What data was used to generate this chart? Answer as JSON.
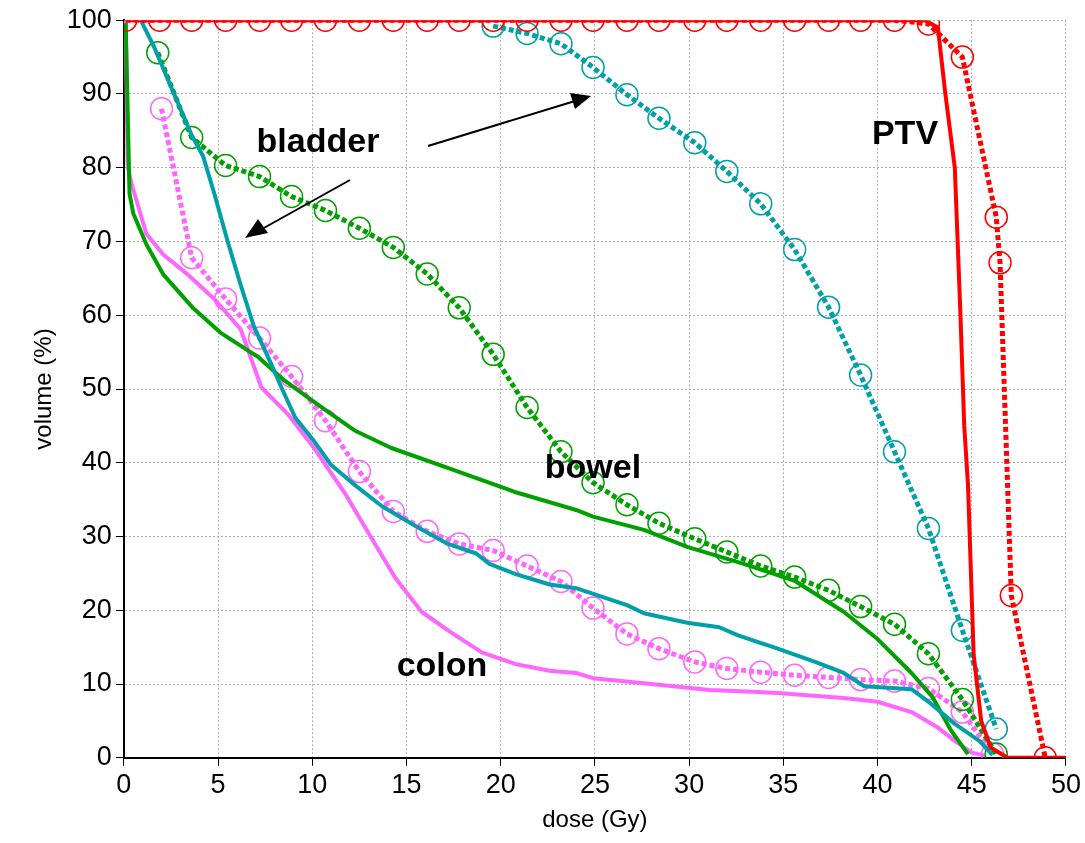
{
  "chart_data": {
    "type": "line",
    "xlabel": "dose (Gy)",
    "ylabel": "volume (%)",
    "xlim": [
      0,
      50
    ],
    "xticks": [
      0,
      5,
      10,
      15,
      20,
      25,
      30,
      35,
      40,
      45,
      50
    ],
    "ylim": [
      0,
      100
    ],
    "yticks": [
      0,
      10,
      20,
      30,
      40,
      50,
      60,
      70,
      80,
      90,
      100
    ],
    "grid": true,
    "legend": false,
    "annotations": [
      "bladder",
      "bowel",
      "colon",
      "PTV"
    ],
    "series": [
      {
        "color": "#ff0000",
        "line_style": "solid",
        "marker": "none",
        "x": [
          0.1,
          42.5,
          43.2,
          43.6,
          44.1,
          44.4,
          44.6,
          44.8,
          45.1,
          45.5,
          46.0,
          46.9,
          50
        ],
        "values": [
          100,
          100,
          99,
          90,
          80,
          60,
          45,
          37,
          14,
          5,
          1.4,
          0,
          0
        ]
      },
      {
        "color": "#ff0000",
        "line_style": "dotted",
        "marker": "circle",
        "x": [
          0.1,
          1.9,
          3.6,
          5.4,
          7.2,
          8.9,
          10.7,
          12.5,
          14.3,
          16.1,
          17.8,
          19.6,
          21.4,
          23.2,
          24.9,
          26.7,
          28.4,
          30.3,
          32.0,
          33.8,
          35.6,
          37.4,
          39.1,
          40.9,
          42.7,
          44.5,
          46.3,
          46.5,
          47.1,
          48.9
        ],
        "values": [
          100,
          100,
          100,
          100,
          100,
          100,
          100,
          100,
          100,
          100,
          100,
          100,
          100,
          100,
          100,
          100,
          100,
          100,
          100,
          100,
          100,
          100,
          100,
          100,
          99.5,
          95,
          73.3,
          67.1,
          22,
          0
        ]
      },
      {
        "color": "#00a0a8",
        "line_style": "solid",
        "marker": "none",
        "x": [
          0.9,
          1.6,
          3.6,
          4.2,
          4.8,
          5.5,
          6.2,
          6.9,
          7.8,
          8.4,
          9.1,
          10.1,
          11.0,
          12.3,
          13.7,
          15.5,
          17.2,
          18.7,
          19.4,
          20.8,
          22.6,
          24.0,
          26.7,
          27.6,
          29.9,
          31.6,
          32.6,
          34.7,
          36.8,
          38.2,
          39.3,
          41.8,
          42.8,
          44.1,
          45.4,
          46.1
        ],
        "values": [
          100,
          96.4,
          84.4,
          81.6,
          76.5,
          70.1,
          64.1,
          58.5,
          53.5,
          50.0,
          46.1,
          42.9,
          39.7,
          36.9,
          34.1,
          31.4,
          29.0,
          27.7,
          26.3,
          24.9,
          23.5,
          23.0,
          20.7,
          19.6,
          18.3,
          17.7,
          16.6,
          14.8,
          12.9,
          11.5,
          9.7,
          9.3,
          7.4,
          4.6,
          2.3,
          0.4
        ]
      },
      {
        "color": "#00a0a8",
        "line_style": "dotted",
        "marker": "circle",
        "x": [
          19.6,
          21.4,
          23.2,
          24.9,
          26.7,
          28.4,
          30.3,
          32.0,
          33.8,
          35.6,
          37.4,
          39.1,
          40.9,
          42.7,
          44.5,
          46.3
        ],
        "values": [
          99.2,
          98.2,
          96.8,
          93.6,
          89.9,
          86.7,
          83.4,
          79.5,
          75.1,
          68.9,
          61.1,
          51.9,
          41.5,
          31.1,
          17.3,
          3.9
        ]
      },
      {
        "color": "#00a000",
        "line_style": "solid",
        "marker": "none",
        "x": [
          0.1,
          0.3,
          0.5,
          1.2,
          2.1,
          3.7,
          5.2,
          7.1,
          8.5,
          10.5,
          12.3,
          14.2,
          17.3,
          20.8,
          24.0,
          24.9,
          27.6,
          29.9,
          32.9,
          35.6,
          38.2,
          40.0,
          41.8,
          42.9,
          43.9,
          44.8
        ],
        "values": [
          99.6,
          76.5,
          73.8,
          69.6,
          65.5,
          60.9,
          57.5,
          54.4,
          51.2,
          47.5,
          44.3,
          42.0,
          39.2,
          36.0,
          33.6,
          32.7,
          30.9,
          28.6,
          26.3,
          24.0,
          19.8,
          16.1,
          11.5,
          8.3,
          3.7,
          0.5
        ]
      },
      {
        "color": "#00a000",
        "line_style": "dotted",
        "marker": "circle",
        "x": [
          1.8,
          3.6,
          5.4,
          7.2,
          8.9,
          10.7,
          12.5,
          14.3,
          16.1,
          17.8,
          19.6,
          21.4,
          23.2,
          24.9,
          26.7,
          28.4,
          30.3,
          32.0,
          33.8,
          35.6,
          37.4,
          39.1,
          40.9,
          42.7,
          44.5,
          46.3
        ],
        "values": [
          95.6,
          84.1,
          80.3,
          78.8,
          76.1,
          74.2,
          71.8,
          69.2,
          65.6,
          61.0,
          54.7,
          47.5,
          41.5,
          37.3,
          34.3,
          31.8,
          29.7,
          27.9,
          26.0,
          24.5,
          22.7,
          20.5,
          18.1,
          14.1,
          7.9,
          0.5
        ]
      },
      {
        "color": "#ff66ff",
        "line_style": "solid",
        "marker": "none",
        "x": [
          0.1,
          0.2,
          0.4,
          1.2,
          2.1,
          3.4,
          4.8,
          6.2,
          7.3,
          8.7,
          10.1,
          11.7,
          13.0,
          14.4,
          15.8,
          17.3,
          19.0,
          20.8,
          22.6,
          24.0,
          24.9,
          27.6,
          31.1,
          34.7,
          38.2,
          40.0,
          41.8,
          43.2,
          44.1,
          45.0,
          45.7
        ],
        "values": [
          100,
          80.2,
          77.9,
          71.0,
          68.2,
          65.5,
          62.2,
          58.1,
          50.2,
          46.6,
          42.0,
          36.0,
          30.4,
          24.4,
          19.8,
          17.1,
          14.3,
          12.7,
          11.8,
          11.5,
          10.8,
          10.1,
          9.2,
          8.8,
          8.1,
          7.6,
          6.2,
          4.1,
          2.3,
          0.7,
          0.3
        ]
      },
      {
        "color": "#ff66ff",
        "line_style": "dotted",
        "marker": "circle",
        "x": [
          2.0,
          3.6,
          5.4,
          7.2,
          8.9,
          10.7,
          12.5,
          14.3,
          16.1,
          17.8,
          19.6,
          21.4,
          23.2,
          24.9,
          26.7,
          28.4,
          30.3,
          32.0,
          33.8,
          35.6,
          37.4,
          39.1,
          40.9,
          42.7,
          44.5,
          46.1
        ],
        "values": [
          88,
          67.8,
          62.2,
          56.9,
          51.7,
          45.7,
          38.8,
          33.4,
          30.7,
          29.0,
          28.1,
          26.0,
          23.9,
          20.3,
          16.8,
          14.8,
          13.0,
          12.1,
          11.6,
          11.2,
          10.9,
          10.6,
          10.4,
          9.4,
          6.2,
          0.5
        ]
      }
    ]
  }
}
